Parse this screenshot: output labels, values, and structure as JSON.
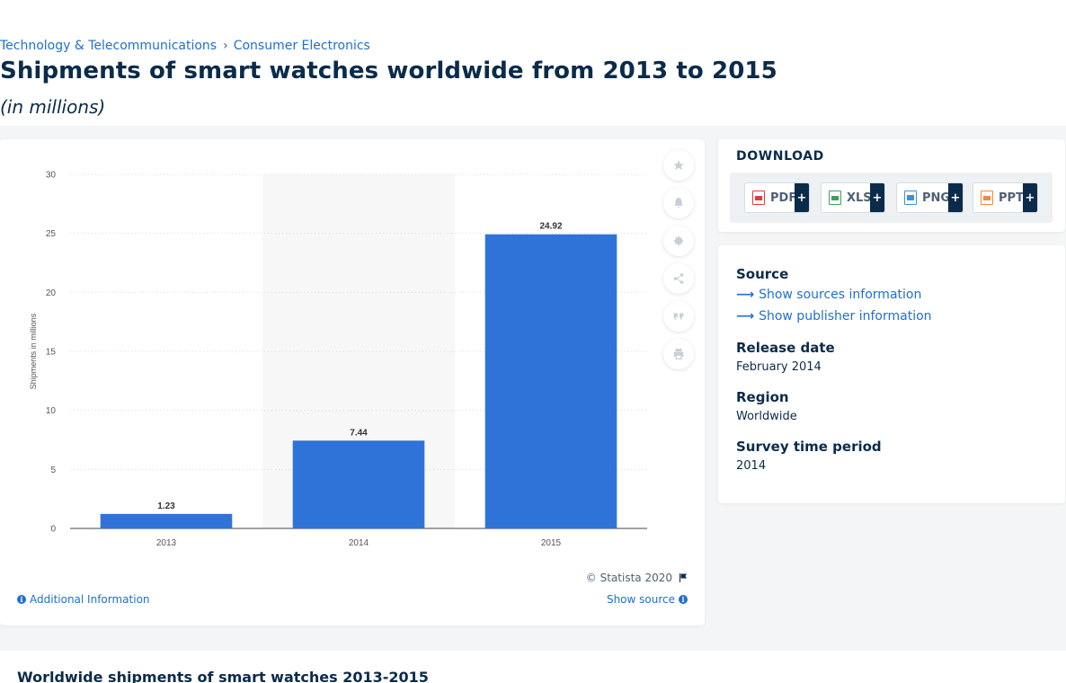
{
  "breadcrumb": [
    {
      "label": "Technology & Telecommunications"
    },
    {
      "label": "Consumer Electronics"
    }
  ],
  "title": "Shipments of smart watches worldwide from 2013 to 2015",
  "subtitle": "(in millions)",
  "chart_data": {
    "type": "bar",
    "categories": [
      "2013",
      "2014",
      "2015"
    ],
    "values": [
      1.23,
      7.44,
      24.92
    ],
    "value_labels": [
      "1.23",
      "7.44",
      "24.92"
    ],
    "ylabel": "Shipments in millions",
    "xlabel": "",
    "ylim": [
      0,
      30
    ],
    "yticks": [
      "0",
      "5",
      "10",
      "15",
      "20",
      "25",
      "30"
    ],
    "ytick_values": [
      0,
      5,
      10,
      15,
      20,
      25,
      30
    ],
    "highlighted_category": "2014",
    "grid": true,
    "bar_color": "#2f73d8"
  },
  "chart_footer": {
    "copyright": "© Statista 2020",
    "additional_info": "Additional Information",
    "show_source": "Show source"
  },
  "tools": [
    {
      "name": "favorite-star-icon"
    },
    {
      "name": "notification-bell-icon"
    },
    {
      "name": "settings-gear-icon"
    },
    {
      "name": "share-icon"
    },
    {
      "name": "cite-quote-icon"
    },
    {
      "name": "print-icon"
    }
  ],
  "download": {
    "title": "DOWNLOAD",
    "buttons": [
      {
        "label": "PDF",
        "plus": "+",
        "color": "#e03b3b"
      },
      {
        "label": "XLS",
        "plus": "+",
        "color": "#3aa35a"
      },
      {
        "label": "PNG",
        "plus": "+",
        "color": "#3f8fd8"
      },
      {
        "label": "PPT",
        "plus": "+",
        "color": "#f08a3c"
      }
    ]
  },
  "source_panel": {
    "source_heading": "Source",
    "show_sources": "Show sources information",
    "show_publisher": "Show publisher information",
    "release_heading": "Release date",
    "release_value": "February 2014",
    "region_heading": "Region",
    "region_value": "Worldwide",
    "survey_heading": "Survey time period",
    "survey_value": "2014"
  },
  "bottom": {
    "title": "Worldwide shipments of smart watches 2013-2015"
  },
  "colors": {
    "accent": "#1f6fd1",
    "navy": "#0b2b4a",
    "bar": "#2f73d8"
  }
}
